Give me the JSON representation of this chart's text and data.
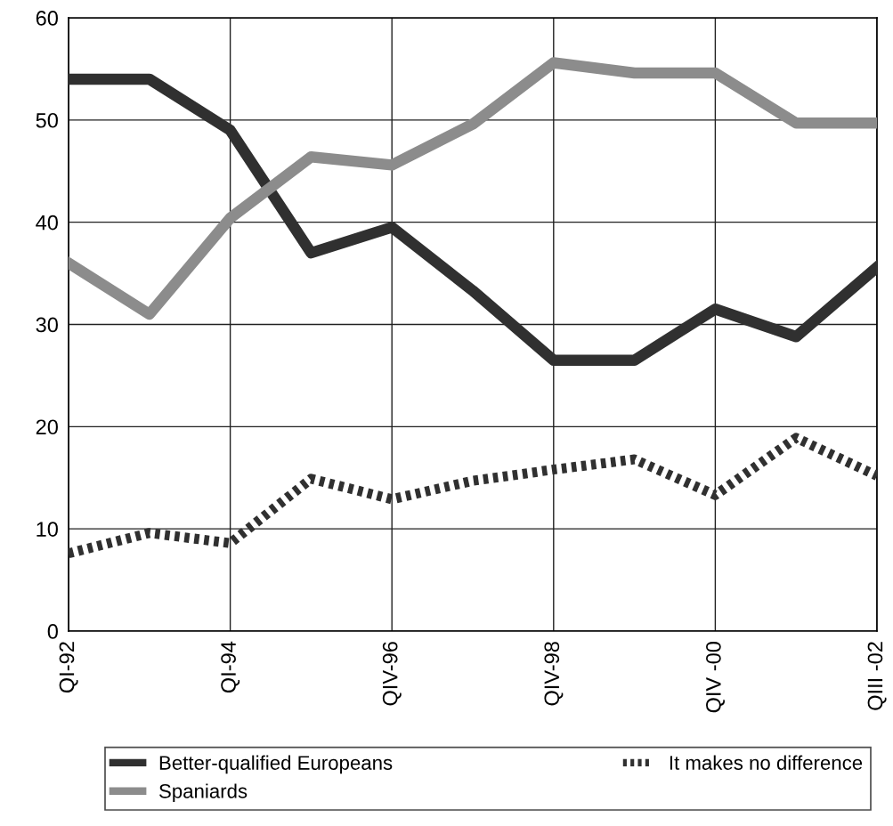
{
  "chart_data": {
    "type": "line",
    "categories": [
      "QI-92",
      null,
      "QI-94",
      null,
      "QIV-96",
      null,
      "QIV-98",
      null,
      "QIV -00",
      null,
      "QIII -02"
    ],
    "series": [
      {
        "name": "Better-qualified Europeans",
        "color": "#303030",
        "line_style": "solid",
        "values": [
          54,
          54,
          49,
          37,
          39.5,
          33.3,
          26.5,
          26.5,
          31.5,
          28.8,
          35.6
        ]
      },
      {
        "name": "Spaniards",
        "color": "#8c8c8c",
        "line_style": "solid",
        "values": [
          36,
          31,
          40.4,
          46.4,
          45.6,
          49.6,
          55.6,
          54.6,
          54.6,
          49.7,
          49.7
        ]
      },
      {
        "name": "It makes no difference",
        "color": "#303030",
        "line_style": "dotted",
        "values": [
          7.6,
          9.6,
          8.6,
          14.9,
          12.9,
          14.7,
          15.8,
          16.8,
          13.3,
          18.9,
          15.2
        ]
      }
    ],
    "ylim": [
      0,
      60
    ],
    "yticks": [
      0,
      10,
      20,
      30,
      40,
      50,
      60
    ],
    "grid": true,
    "legend": "bottom",
    "marker": "none"
  }
}
